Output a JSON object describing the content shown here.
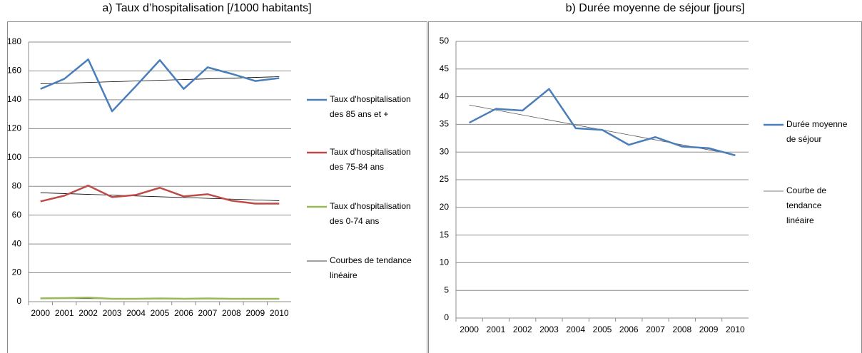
{
  "chart_data": [
    {
      "type": "line",
      "title": "a) Taux d’hospitalisation [/1000 habitants]",
      "categories": [
        "2000",
        "2001",
        "2002",
        "2003",
        "2004",
        "2005",
        "2006",
        "2007",
        "2008",
        "2009",
        "2010"
      ],
      "series": [
        {
          "name": "Taux d'hospitalisation des 85 ans et +",
          "color": "#4a7ebb",
          "values": [
            147.5,
            154.5,
            168,
            132,
            149.5,
            167.5,
            147.5,
            162.5,
            158,
            153,
            155
          ]
        },
        {
          "name": "Taux d'hospitalisation des 75-84 ans",
          "color": "#be4b48",
          "values": [
            69.5,
            73.5,
            80.5,
            72.5,
            74,
            79,
            73,
            74.5,
            70,
            68,
            68
          ]
        },
        {
          "name": "Taux d'hospitalisation des 0-74 ans",
          "color": "#98b954",
          "values": [
            2.3,
            2.5,
            2.8,
            2,
            2,
            2.2,
            2,
            2.2,
            2,
            2,
            2
          ]
        }
      ],
      "trendlines": {
        "name": "Courbes de tendance linéaire",
        "color": "#000000",
        "values": [
          [
            151,
            156
          ],
          [
            75.5,
            70
          ],
          [
            2.2,
            1.8
          ]
        ]
      },
      "ylim": [
        0,
        180
      ],
      "yticks": [
        0,
        20,
        40,
        60,
        80,
        100,
        120,
        140,
        160,
        180
      ],
      "grid": true
    },
    {
      "type": "line",
      "title": "b) Durée moyenne de séjour [jours]",
      "categories": [
        "2000",
        "2001",
        "2002",
        "2003",
        "2004",
        "2005",
        "2006",
        "2007",
        "2008",
        "2009",
        "2010"
      ],
      "series": [
        {
          "name": "Durée moyenne de séjour",
          "color": "#4a7ebb",
          "values": [
            35.3,
            37.8,
            37.5,
            41.4,
            34.3,
            34,
            31.3,
            32.7,
            31,
            30.7,
            29.4
          ]
        }
      ],
      "trendlines": {
        "name": "Courbe de tendance linéaire",
        "color": "#555555",
        "values": [
          [
            38.5,
            29.5
          ]
        ]
      },
      "ylim": [
        0,
        50
      ],
      "yticks": [
        0,
        5,
        10,
        15,
        20,
        25,
        30,
        35,
        40,
        45,
        50
      ],
      "grid": true
    }
  ]
}
